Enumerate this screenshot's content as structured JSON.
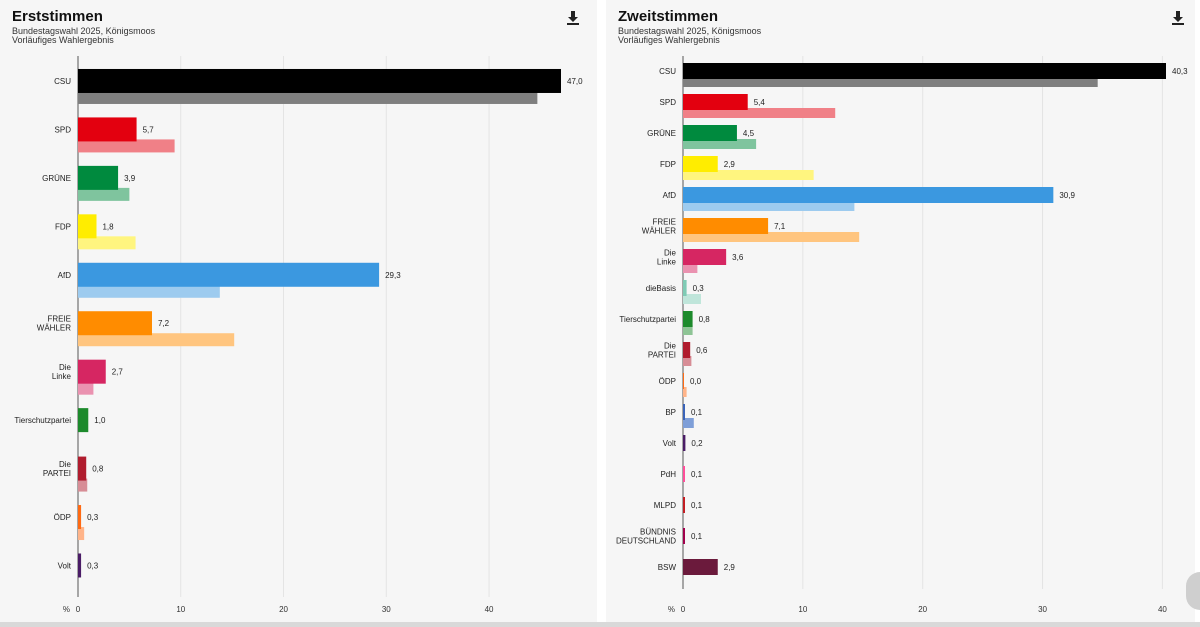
{
  "charts_meta": {
    "download_icon": "download-icon"
  },
  "chart_data": [
    {
      "type": "bar",
      "title": "Erststimmen",
      "subtitle_line1": "Bundestagswahl 2025, Königsmoos",
      "subtitle_line2": "Vorläufiges Wahlergebnis",
      "unit_label": "%",
      "xlim": [
        0,
        47
      ],
      "xticks": [
        "0",
        "10",
        "20",
        "30",
        "40"
      ],
      "grid": true,
      "categories": [
        "CSU",
        "SPD",
        "GRÜNE",
        "FDP",
        "AfD",
        "FREIE\nWÄHLER",
        "Die\nLinke",
        "Tierschutzpartei",
        "Die\nPARTEI",
        "ÖDP",
        "Volt"
      ],
      "series": [
        {
          "values": [
            47.0,
            5.7,
            3.9,
            1.8,
            29.3,
            7.2,
            2.7,
            1.0,
            0.8,
            0.3,
            0.3
          ]
        },
        {
          "values": [
            44.7,
            9.4,
            5.0,
            5.6,
            13.8,
            15.2,
            1.5,
            null,
            0.9,
            0.6,
            null
          ]
        }
      ],
      "value_labels": [
        "47,0",
        "5,7",
        "3,9",
        "1,8",
        "29,3",
        "7,2",
        "2,7",
        "1,0",
        "0,8",
        "0,3",
        "0,3"
      ],
      "colors": [
        "#000000",
        "#e3000f",
        "#008a3e",
        "#ffed00",
        "#3b98e0",
        "#ff8c00",
        "#d62662",
        "#1d8a2c",
        "#b01c2e",
        "#ff6a13",
        "#4a1c66"
      ],
      "prev_colors": [
        "#7f7f7f",
        "#f08087",
        "#7fc49e",
        "#fff57f",
        "#9dcbef",
        "#ffc57f",
        "#ea92b0",
        "#8ec495",
        "#d78d96",
        "#ffb489",
        "#a48db2"
      ]
    },
    {
      "type": "bar",
      "title": "Zweitstimmen",
      "subtitle_line1": "Bundestagswahl 2025, Königsmoos",
      "subtitle_line2": "Vorläufiges Wahlergebnis",
      "unit_label": "%",
      "xlim": [
        0,
        40.3
      ],
      "xticks": [
        "0",
        "10",
        "20",
        "30",
        "40"
      ],
      "grid": true,
      "categories": [
        "CSU",
        "SPD",
        "GRÜNE",
        "FDP",
        "AfD",
        "FREIE\nWÄHLER",
        "Die\nLinke",
        "dieBasis",
        "Tierschutzpartei",
        "Die\nPARTEI",
        "ÖDP",
        "BP",
        "Volt",
        "PdH",
        "MLPD",
        "BÜNDNIS\nDEUTSCHLAND",
        "BSW"
      ],
      "series": [
        {
          "values": [
            40.3,
            5.4,
            4.5,
            2.9,
            30.9,
            7.1,
            3.6,
            0.3,
            0.8,
            0.6,
            0.0,
            0.1,
            0.2,
            0.1,
            0.1,
            0.1,
            2.9
          ]
        },
        {
          "values": [
            34.6,
            12.7,
            6.1,
            10.9,
            14.3,
            14.7,
            1.2,
            1.5,
            0.8,
            0.7,
            0.3,
            0.9,
            null,
            null,
            null,
            null,
            null
          ]
        }
      ],
      "value_labels": [
        "40,3",
        "5,4",
        "4,5",
        "2,9",
        "30,9",
        "7,1",
        "3,6",
        "0,3",
        "0,8",
        "0,6",
        "0,0",
        "0,1",
        "0,2",
        "0,1",
        "0,1",
        "0,1",
        "2,9"
      ],
      "colors": [
        "#000000",
        "#e3000f",
        "#008a3e",
        "#ffed00",
        "#3b98e0",
        "#ff8c00",
        "#d62662",
        "#7fcbb5",
        "#1d8a2c",
        "#b01c2e",
        "#ff6a13",
        "#3a63b8",
        "#4a1c66",
        "#ff4f9a",
        "#c21d23",
        "#a0004b",
        "#6b1a3c"
      ],
      "prev_colors": [
        "#7f7f7f",
        "#f08087",
        "#7fc49e",
        "#fff57f",
        "#9dcbef",
        "#ffc57f",
        "#ea92b0",
        "#bfe5da",
        "#8ec495",
        "#d78d96",
        "#ffb489",
        "#7f9fd8",
        "#a48db2",
        "#ffa7cc",
        "#e08e91",
        "#cf7fa5",
        "#b58c9d"
      ]
    }
  ]
}
